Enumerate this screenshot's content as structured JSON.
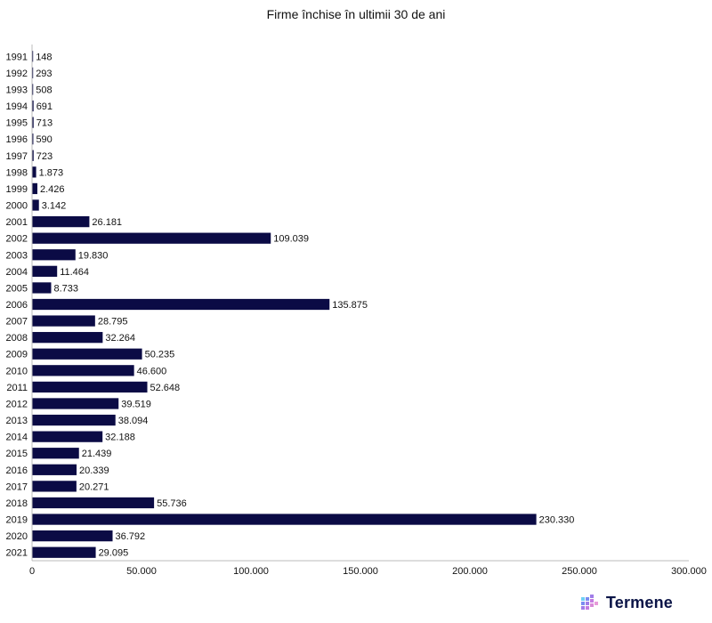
{
  "chart_data": {
    "type": "bar",
    "orientation": "horizontal",
    "title": "Firme închise în ultimii 30 de ani",
    "xlabel": "",
    "ylabel": "",
    "categories": [
      "1991",
      "1992",
      "1993",
      "1994",
      "1995",
      "1996",
      "1997",
      "1998",
      "1999",
      "2000",
      "2001",
      "2002",
      "2003",
      "2004",
      "2005",
      "2006",
      "2007",
      "2008",
      "2009",
      "2010",
      "2011",
      "2012",
      "2013",
      "2014",
      "2015",
      "2016",
      "2017",
      "2018",
      "2019",
      "2020",
      "2021"
    ],
    "values": [
      148,
      293,
      508,
      691,
      713,
      590,
      723,
      1873,
      2426,
      3142,
      26181,
      109039,
      19830,
      11464,
      8733,
      135875,
      28795,
      32264,
      50235,
      46600,
      52648,
      39519,
      38094,
      32188,
      21439,
      20339,
      20271,
      55736,
      230330,
      36792,
      29095
    ],
    "value_labels": [
      "148",
      "293",
      "508",
      "691",
      "713",
      "590",
      "723",
      "1.873",
      "2.426",
      "3.142",
      "26.181",
      "109.039",
      "19.830",
      "11.464",
      "8.733",
      "135.875",
      "28.795",
      "32.264",
      "50.235",
      "46.600",
      "52.648",
      "39.519",
      "38.094",
      "32.188",
      "21.439",
      "20.339",
      "20.271",
      "55.736",
      "230.330",
      "36.792",
      "29.095"
    ],
    "xlim": [
      0,
      300000
    ],
    "xticks": [
      0,
      50000,
      100000,
      150000,
      200000,
      250000,
      300000
    ],
    "xtick_labels": [
      "0",
      "50.000",
      "100.000",
      "150.000",
      "200.000",
      "250.000",
      "300.000"
    ],
    "grid": false,
    "bar_color": "#0b0b45",
    "legend": "none"
  },
  "brand": {
    "name": "Termene",
    "logo_icon": "cube-grid-icon"
  }
}
